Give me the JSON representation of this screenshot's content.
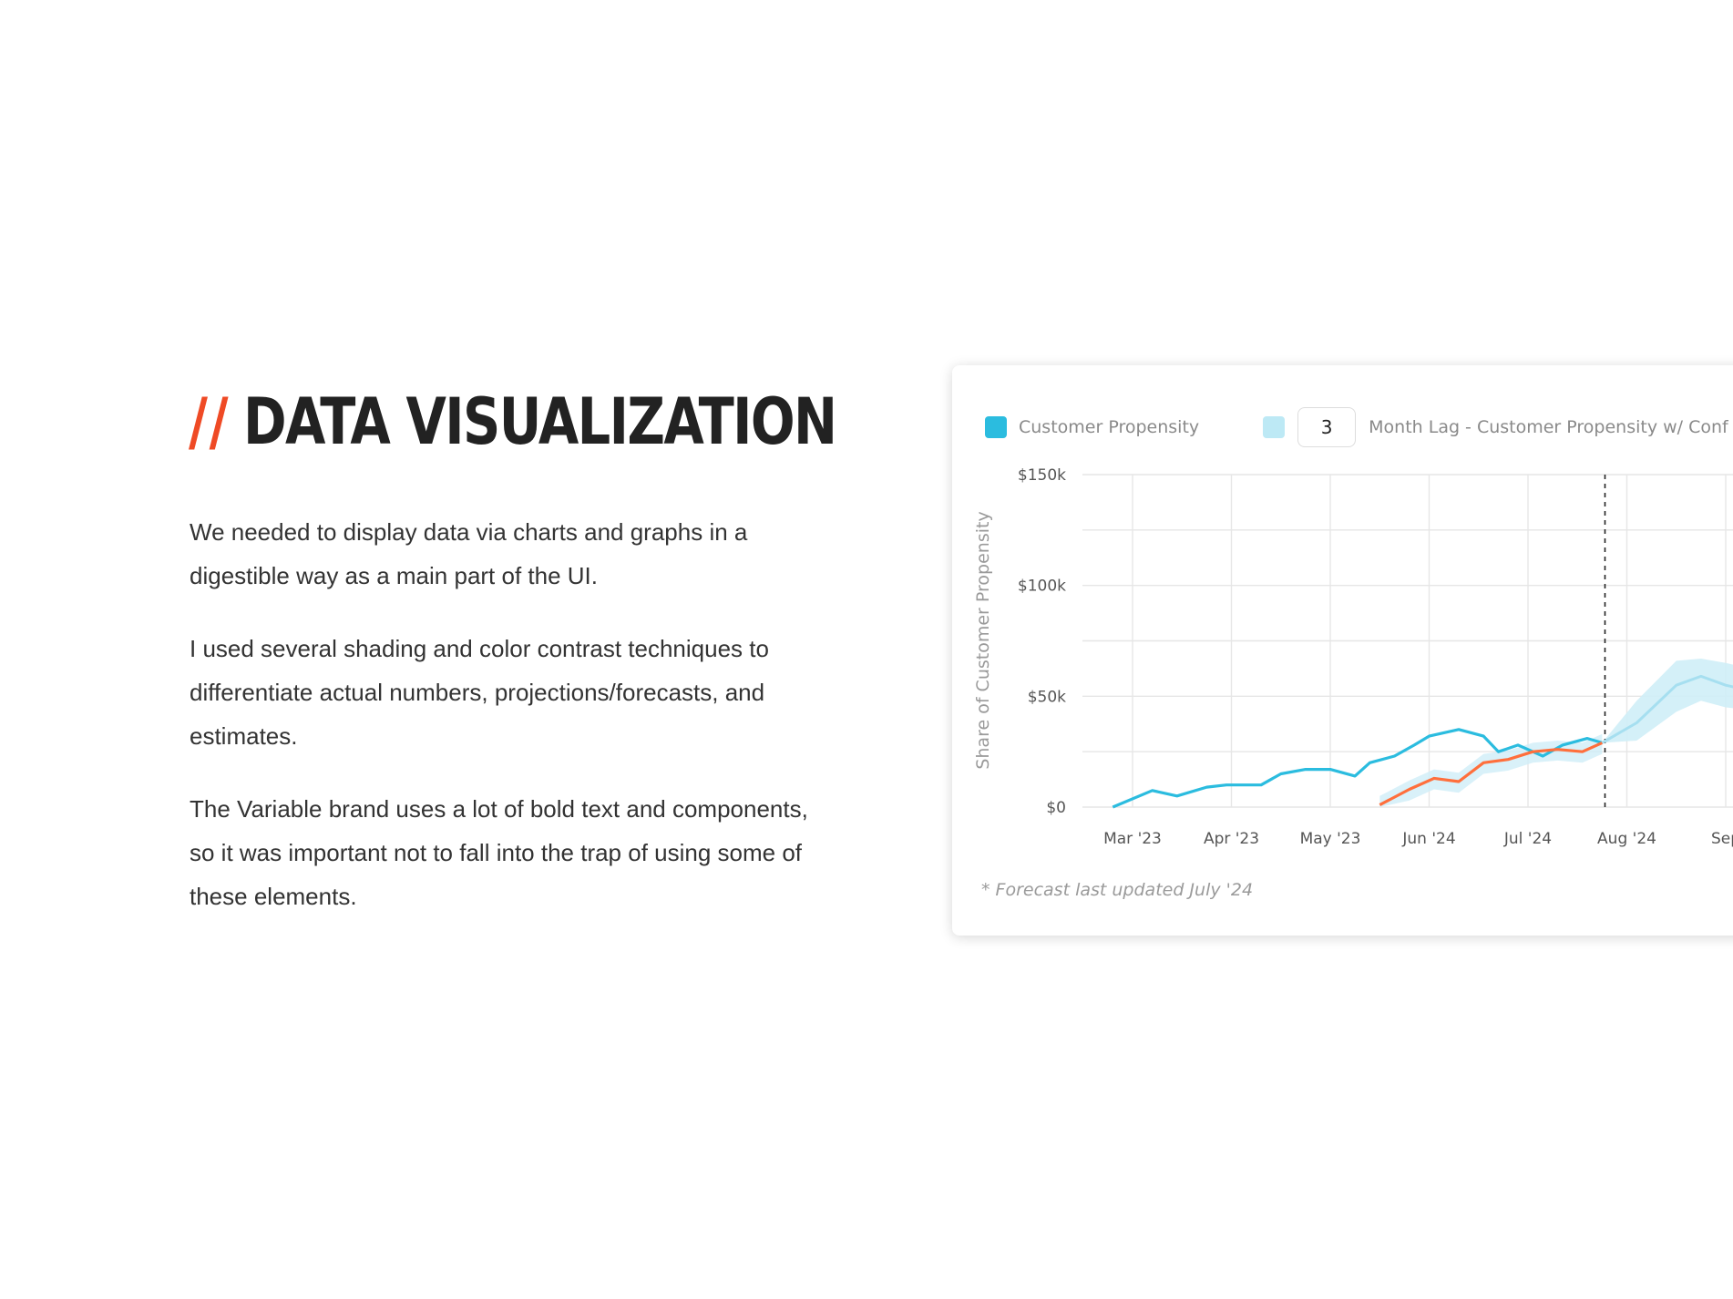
{
  "section": {
    "slashes": "//",
    "title": "DATA VISUALIZATION",
    "paragraphs": [
      "We needed to display data via charts and graphs in a digestible way as a main part of the UI.",
      "I used several shading and color contrast techniques to differentiate actual numbers, projections/forecasts, and estimates.",
      "The Variable brand uses a lot of bold text and components, so it was important not to fall into the trap of using some of these elements."
    ]
  },
  "colors": {
    "accent": "#ef4a25",
    "propensity": "#2bbcdf",
    "propensity_light": "#bde9f5",
    "band": "#cfeef7",
    "lag_line": "#ff6f3c"
  },
  "chart_card": {
    "legend": {
      "item1_label": "Customer Propensity",
      "lag_value": "3",
      "item2_label": "Month Lag - Customer Propensity w/ Conf"
    },
    "footnote": "* Forecast last updated July '24"
  },
  "chart_data": {
    "type": "line",
    "ylabel": "Share of Customer Propensity",
    "y_ticks": [
      {
        "value": 0,
        "label": "$0"
      },
      {
        "value": 50000,
        "label": "$50k"
      },
      {
        "value": 100000,
        "label": "$100k"
      },
      {
        "value": 150000,
        "label": "$150k"
      }
    ],
    "ylim": [
      0,
      150000
    ],
    "grid": true,
    "legend_position": "top-left",
    "x_ticks": [
      "Mar '23",
      "Apr '23",
      "May '23",
      "Jun '24",
      "Jul '24",
      "Aug '24",
      "Sep"
    ],
    "forecast_marker_x": 5.0,
    "series": [
      {
        "name": "Customer Propensity",
        "style": "actual",
        "points": [
          [
            -0.2,
            0
          ],
          [
            0.2,
            7500
          ],
          [
            0.45,
            5000
          ],
          [
            0.75,
            9000
          ],
          [
            0.95,
            10000
          ],
          [
            1.3,
            10000
          ],
          [
            1.5,
            15000
          ],
          [
            1.75,
            17000
          ],
          [
            2.0,
            17000
          ],
          [
            2.25,
            14000
          ],
          [
            2.4,
            20000
          ],
          [
            2.65,
            23000
          ],
          [
            2.85,
            28000
          ],
          [
            3.0,
            32000
          ],
          [
            3.3,
            35000
          ],
          [
            3.55,
            32000
          ],
          [
            3.7,
            25000
          ],
          [
            3.9,
            28000
          ],
          [
            4.15,
            23000
          ],
          [
            4.35,
            28000
          ],
          [
            4.6,
            31000
          ],
          [
            4.75,
            29000
          ]
        ]
      },
      {
        "name": "Month Lag - Customer Propensity w/ Conf",
        "style": "lagged",
        "points": [
          [
            2.5,
            1000
          ],
          [
            2.8,
            8000
          ],
          [
            3.05,
            13000
          ],
          [
            3.3,
            11500
          ],
          [
            3.55,
            20000
          ],
          [
            3.8,
            21500
          ],
          [
            4.05,
            25000
          ],
          [
            4.3,
            26000
          ],
          [
            4.55,
            25000
          ],
          [
            4.75,
            29000
          ]
        ]
      },
      {
        "name": "Forecast",
        "style": "projection",
        "points": [
          [
            4.75,
            29000
          ],
          [
            5.1,
            38000
          ],
          [
            5.5,
            55000
          ],
          [
            5.75,
            59000
          ],
          [
            6.0,
            55000
          ],
          [
            6.2,
            53000
          ]
        ],
        "band_upper": [
          [
            4.75,
            29000
          ],
          [
            5.1,
            48000
          ],
          [
            5.5,
            66000
          ],
          [
            5.75,
            67000
          ],
          [
            6.0,
            65000
          ],
          [
            6.2,
            63000
          ]
        ],
        "band_lower": [
          [
            4.75,
            29000
          ],
          [
            5.1,
            30000
          ],
          [
            5.5,
            43000
          ],
          [
            5.75,
            48000
          ],
          [
            6.0,
            45000
          ],
          [
            6.2,
            44000
          ]
        ]
      }
    ]
  }
}
